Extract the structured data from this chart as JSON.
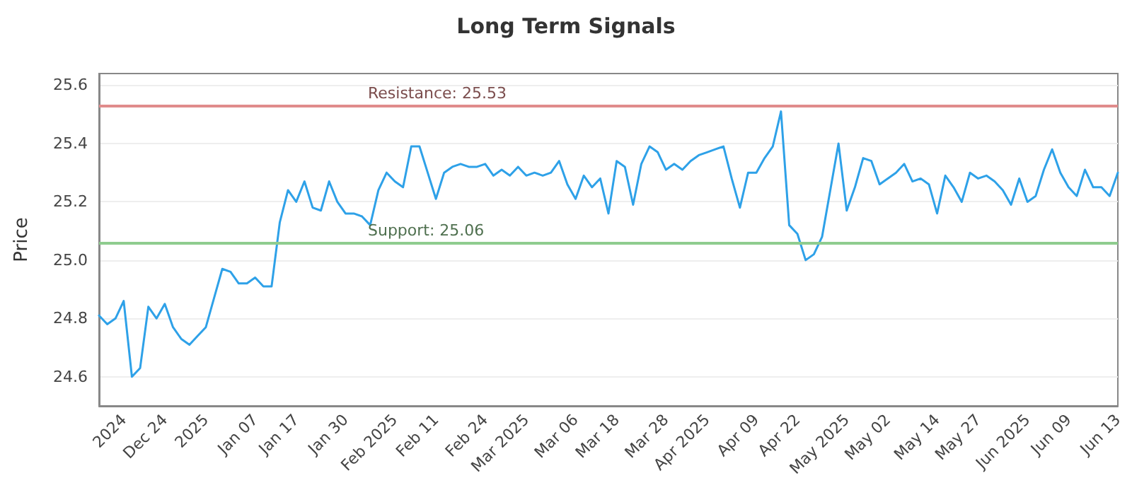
{
  "chart_data": {
    "type": "line",
    "title": "Long Term Signals",
    "ylabel": "Price",
    "categories": [
      null,
      null,
      null,
      "2024",
      null,
      null,
      null,
      null,
      "Dec 24",
      null,
      null,
      null,
      null,
      "2025",
      null,
      null,
      null,
      null,
      null,
      "Jan 07",
      null,
      null,
      null,
      null,
      "Jan 17",
      null,
      null,
      null,
      null,
      null,
      "Jan 30",
      null,
      null,
      null,
      null,
      null,
      "Feb 2025",
      null,
      null,
      null,
      null,
      "Feb 11",
      null,
      null,
      null,
      null,
      null,
      "Feb 24",
      null,
      null,
      null,
      null,
      "Mar 2025",
      null,
      null,
      null,
      null,
      null,
      "Mar 06",
      null,
      null,
      null,
      null,
      "Mar 18",
      null,
      null,
      null,
      null,
      null,
      "Mar 28",
      null,
      null,
      null,
      null,
      "Apr 2025",
      null,
      null,
      null,
      null,
      null,
      "Apr 09",
      null,
      null,
      null,
      null,
      "Apr 22",
      null,
      null,
      null,
      null,
      null,
      "May 2025",
      null,
      null,
      null,
      null,
      "May 02",
      null,
      null,
      null,
      null,
      null,
      "May 14",
      null,
      null,
      null,
      null,
      "May 27",
      null,
      null,
      null,
      null,
      null,
      "Jun 2025",
      null,
      null,
      null,
      null,
      "Jun 09",
      null,
      null,
      null,
      null,
      null,
      "Jun 13"
    ],
    "series": [
      {
        "color": "#2ea1e8",
        "values": [
          24.81,
          24.78,
          24.8,
          24.86,
          24.6,
          24.63,
          24.84,
          24.8,
          24.85,
          24.77,
          24.73,
          24.71,
          24.74,
          24.77,
          24.87,
          24.97,
          24.96,
          24.92,
          24.92,
          24.94,
          24.91,
          24.91,
          25.13,
          25.24,
          25.2,
          25.27,
          25.18,
          25.17,
          25.27,
          25.2,
          25.16,
          25.16,
          25.15,
          25.12,
          25.24,
          25.3,
          25.27,
          25.25,
          25.39,
          25.39,
          25.3,
          25.21,
          25.3,
          25.32,
          25.33,
          25.32,
          25.32,
          25.33,
          25.29,
          25.31,
          25.29,
          25.32,
          25.29,
          25.3,
          25.29,
          25.3,
          25.34,
          25.26,
          25.21,
          25.29,
          25.25,
          25.28,
          25.16,
          25.34,
          25.32,
          25.19,
          25.33,
          25.39,
          25.37,
          25.31,
          25.33,
          25.31,
          25.34,
          25.36,
          25.37,
          25.38,
          25.39,
          25.28,
          25.18,
          25.3,
          25.3,
          25.35,
          25.39,
          25.51,
          25.12,
          25.09,
          25.0,
          25.02,
          25.08,
          25.24,
          25.4,
          25.17,
          25.25,
          25.35,
          25.34,
          25.26,
          25.28,
          25.3,
          25.33,
          25.27,
          25.28,
          25.26,
          25.16,
          25.29,
          25.25,
          25.2,
          25.3,
          25.28,
          25.29,
          25.27,
          25.24,
          25.19,
          25.28,
          25.2,
          25.22,
          25.31,
          25.38,
          25.3,
          25.25,
          25.22,
          25.31,
          25.25,
          25.25,
          25.22,
          25.3
        ]
      }
    ],
    "ylim": [
      24.5,
      25.64
    ],
    "yticks": [
      24.6,
      24.8,
      {
        "value": 25.0,
        "label": "25.0"
      },
      25.2,
      25.4,
      25.6
    ],
    "ref_lines": [
      {
        "axis": "y",
        "value": 25.53,
        "label": "Resistance: 25.53",
        "color": "#e08c8c"
      },
      {
        "axis": "y",
        "value": 25.06,
        "label": "Support: 25.06",
        "color": "#8fcc8f"
      }
    ],
    "grid": "y",
    "marker": "none",
    "line_style": "solid"
  }
}
